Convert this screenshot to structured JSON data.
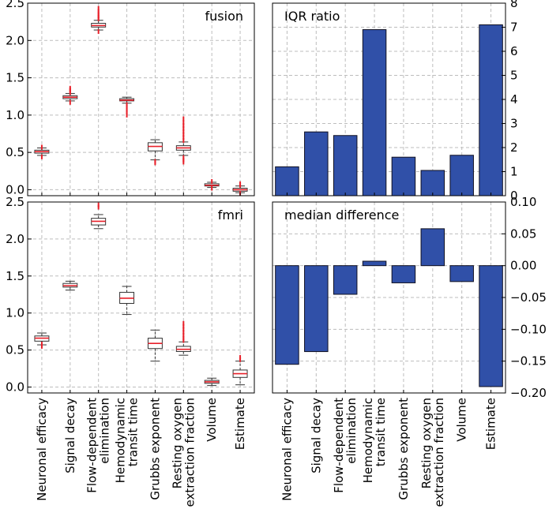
{
  "categories": [
    "Neuronal efficacy",
    "Signal decay",
    "Flow-dependent\nelimination",
    "Hemodynamic\ntransit time",
    "Grubbs exponent",
    "Resting oxygen\nextraction fraction",
    "Volume",
    "Estimate"
  ],
  "chart_data": [
    {
      "type": "box",
      "title": "fusion",
      "ylim": [
        -0.08,
        2.5
      ],
      "yticks": [
        0.0,
        0.5,
        1.0,
        1.5,
        2.0,
        2.5
      ],
      "ytick_labels": [
        "0.0",
        "0.5",
        "1.0",
        "1.5",
        "2.0",
        "2.5"
      ],
      "grid": true,
      "boxes": [
        {
          "whislo": 0.46,
          "q1": 0.49,
          "med": 0.51,
          "q3": 0.53,
          "whishi": 0.56,
          "fliers": [
            0.44,
            0.57
          ]
        },
        {
          "whislo": 1.19,
          "q1": 1.22,
          "med": 1.24,
          "q3": 1.26,
          "whishi": 1.29,
          "fliers": [
            1.17,
            1.3,
            1.32,
            1.34,
            1.36
          ]
        },
        {
          "whislo": 2.14,
          "q1": 2.18,
          "med": 2.2,
          "q3": 2.23,
          "whishi": 2.27,
          "fliers": [
            2.12,
            2.29,
            2.31,
            2.33,
            2.36,
            2.39,
            2.43
          ]
        },
        {
          "whislo": 1.16,
          "q1": 1.19,
          "med": 1.2,
          "q3": 1.22,
          "whishi": 1.24,
          "fliers": [
            1.14,
            1.11,
            1.07,
            1.04,
            1.0
          ]
        },
        {
          "whislo": 0.4,
          "q1": 0.52,
          "med": 0.58,
          "q3": 0.63,
          "whishi": 0.67,
          "fliers": [
            0.38,
            0.36
          ]
        },
        {
          "whislo": 0.46,
          "q1": 0.53,
          "med": 0.56,
          "q3": 0.59,
          "whishi": 0.64,
          "fliers": [
            0.43,
            0.4,
            0.37,
            0.66,
            0.7,
            0.74,
            0.78,
            0.82,
            0.86,
            0.9,
            0.95
          ]
        },
        {
          "whislo": 0.03,
          "q1": 0.05,
          "med": 0.06,
          "q3": 0.08,
          "whishi": 0.1,
          "fliers": [
            0.02,
            0.11
          ]
        },
        {
          "whislo": -0.04,
          "q1": -0.02,
          "med": 0.0,
          "q3": 0.02,
          "whishi": 0.05,
          "fliers": [
            -0.05,
            0.06,
            0.08
          ]
        }
      ]
    },
    {
      "type": "bar",
      "title": "IQR ratio",
      "ylim": [
        0,
        8
      ],
      "yticks": [
        0,
        1,
        2,
        3,
        4,
        5,
        6,
        7,
        8
      ],
      "ytick_labels": [
        "0",
        "1",
        "2",
        "3",
        "4",
        "5",
        "6",
        "7",
        "8"
      ],
      "values": [
        1.2,
        2.65,
        2.5,
        6.9,
        1.6,
        1.05,
        1.68,
        7.1
      ],
      "grid": true,
      "color": "#3050a8"
    },
    {
      "type": "box",
      "title": "fmri",
      "ylim": [
        -0.08,
        2.5
      ],
      "yticks": [
        0.0,
        0.5,
        1.0,
        1.5,
        2.0,
        2.5
      ],
      "ytick_labels": [
        "0.0",
        "0.5",
        "1.0",
        "1.5",
        "2.0",
        "2.5"
      ],
      "grid": true,
      "boxes": [
        {
          "whislo": 0.57,
          "q1": 0.62,
          "med": 0.66,
          "q3": 0.69,
          "whishi": 0.73,
          "fliers": [
            0.55,
            0.58
          ]
        },
        {
          "whislo": 1.31,
          "q1": 1.35,
          "med": 1.37,
          "q3": 1.4,
          "whishi": 1.43,
          "fliers": []
        },
        {
          "whislo": 2.14,
          "q1": 2.19,
          "med": 2.24,
          "q3": 2.28,
          "whishi": 2.33,
          "fliers": [
            2.43,
            2.46
          ]
        },
        {
          "whislo": 0.98,
          "q1": 1.13,
          "med": 1.2,
          "q3": 1.28,
          "whishi": 1.36,
          "fliers": []
        },
        {
          "whislo": 0.35,
          "q1": 0.52,
          "med": 0.59,
          "q3": 0.66,
          "whishi": 0.77,
          "fliers": []
        },
        {
          "whislo": 0.43,
          "q1": 0.48,
          "med": 0.51,
          "q3": 0.55,
          "whishi": 0.61,
          "fliers": [
            0.63,
            0.66,
            0.7,
            0.74,
            0.78,
            0.82,
            0.86
          ]
        },
        {
          "whislo": 0.02,
          "q1": 0.05,
          "med": 0.07,
          "q3": 0.09,
          "whishi": 0.12,
          "fliers": []
        },
        {
          "whislo": 0.03,
          "q1": 0.13,
          "med": 0.18,
          "q3": 0.23,
          "whishi": 0.35,
          "fliers": [
            0.37,
            0.4
          ]
        }
      ]
    },
    {
      "type": "bar",
      "title": "median difference",
      "ylim": [
        -0.2,
        0.1
      ],
      "yticks": [
        -0.2,
        -0.15,
        -0.1,
        -0.05,
        0.0,
        0.05,
        0.1
      ],
      "ytick_labels": [
        "−0.20",
        "−0.15",
        "−0.10",
        "−0.05",
        "0.00",
        "0.05",
        "0.10"
      ],
      "values": [
        -0.155,
        -0.135,
        -0.045,
        0.007,
        -0.027,
        0.058,
        -0.025,
        -0.19
      ],
      "grid": true,
      "color": "#3050a8"
    }
  ]
}
